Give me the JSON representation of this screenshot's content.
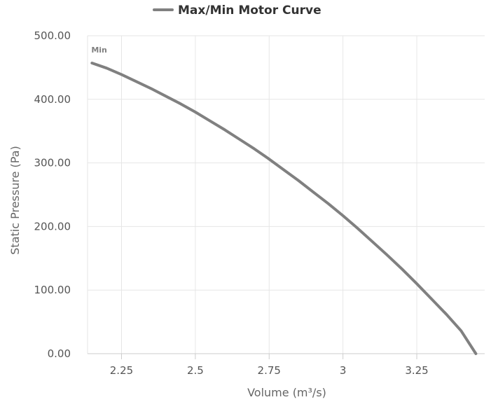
{
  "chart_data": {
    "type": "line",
    "title": "",
    "legend": {
      "placement": "top-center",
      "entries": [
        "Max/Min Motor Curve"
      ]
    },
    "xlabel": "Volume (m³/s)",
    "ylabel": "Static Pressure (Pa)",
    "xlim": [
      2.135,
      3.48
    ],
    "ylim": [
      0,
      500
    ],
    "x_ticks": [
      2.25,
      2.5,
      2.75,
      3,
      3.25
    ],
    "x_tick_labels": [
      "2.25",
      "2.5",
      "2.75",
      "3",
      "3.25"
    ],
    "y_ticks": [
      0,
      100,
      200,
      300,
      400,
      500
    ],
    "y_tick_labels": [
      "0.00",
      "100.00",
      "200.00",
      "300.00",
      "400.00",
      "500.00"
    ],
    "grid": true,
    "series": [
      {
        "name": "Max/Min Motor Curve",
        "color": "#808080",
        "x": [
          2.15,
          2.2,
          2.25,
          2.3,
          2.35,
          2.4,
          2.45,
          2.5,
          2.55,
          2.6,
          2.65,
          2.7,
          2.75,
          2.8,
          2.85,
          2.9,
          2.95,
          3.0,
          3.05,
          3.1,
          3.15,
          3.2,
          3.25,
          3.3,
          3.35,
          3.4,
          3.45
        ],
        "y": [
          457,
          449,
          439,
          428,
          417,
          405,
          393,
          380,
          366,
          352,
          337,
          322,
          306,
          289,
          272,
          254,
          236,
          217,
          197,
          176,
          155,
          133,
          110,
          86,
          62,
          36,
          0
        ]
      }
    ],
    "annotations": [
      {
        "text": "Min",
        "x": 2.15,
        "y": 457
      }
    ]
  }
}
